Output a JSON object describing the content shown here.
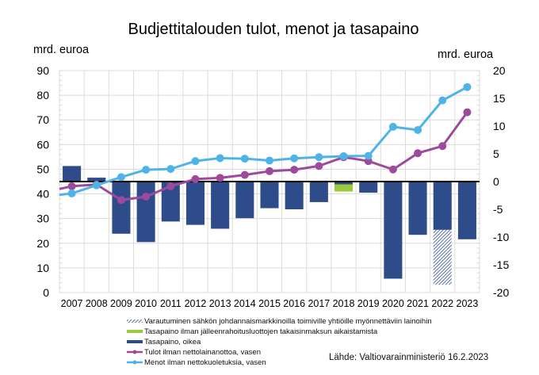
{
  "chart_data": {
    "type": "bar+line",
    "title": "Budjettitalouden tulot, menot ja tasapaino",
    "ylabel_left": "mrd. euroa",
    "ylabel_right": "mrd. euroa",
    "ylim_left": [
      0,
      90
    ],
    "ylim_right": [
      -20,
      20
    ],
    "yticks_left": [
      0,
      10,
      20,
      30,
      40,
      50,
      60,
      70,
      80,
      90
    ],
    "yticks_right": [
      -20,
      -15,
      -10,
      -5,
      0,
      5,
      10,
      15,
      20
    ],
    "grid": true,
    "categories": [
      "2007",
      "2008",
      "2009",
      "2010",
      "2011",
      "2012",
      "2013",
      "2014",
      "2015",
      "2016",
      "2017",
      "2018",
      "2019",
      "2020",
      "2021",
      "2022",
      "2023"
    ],
    "series": [
      {
        "name": "Varautuminen sähkön johdannaismarkkinoilla toimiville yhtiöille myönnettäviin lainoihin",
        "kind": "bar-hatched",
        "axis": "right",
        "color": "#2E4C8A",
        "ranges": [
          null,
          null,
          null,
          null,
          null,
          null,
          null,
          null,
          null,
          null,
          null,
          null,
          null,
          null,
          null,
          [
            -8.7,
            -18.6
          ],
          null
        ]
      },
      {
        "name": "Tasapaino ilman jälleenrahoitusluottojen takaisinmaksun aikaistamista",
        "kind": "bar",
        "axis": "right",
        "color": "#9BCB3C",
        "ranges": [
          null,
          null,
          null,
          null,
          null,
          null,
          null,
          null,
          null,
          null,
          null,
          [
            -0.5,
            -1.8
          ],
          null,
          null,
          null,
          null,
          null
        ]
      },
      {
        "name": "Tasapaino, oikea",
        "kind": "bar",
        "axis": "right",
        "color": "#2E4C8A",
        "values": [
          2.8,
          0.7,
          -9.4,
          -10.9,
          -7.2,
          -7.8,
          -8.5,
          -6.6,
          -4.8,
          -5.0,
          -3.7,
          -0.5,
          -2.0,
          -17.5,
          -9.6,
          -8.7,
          -10.4
        ]
      },
      {
        "name": "Tulot ilman nettolainanottoa, vasen",
        "kind": "line",
        "axis": "left",
        "color": "#9E4A9C",
        "start_value": 42.0,
        "values": [
          43.1,
          43.8,
          37.5,
          38.9,
          43.1,
          46.0,
          46.5,
          47.7,
          49.2,
          49.8,
          51.3,
          54.9,
          53.3,
          49.9,
          56.5,
          59.4,
          73.1
        ]
      },
      {
        "name": "Menot ilman nettokuoletuksia, vasen",
        "kind": "line",
        "axis": "left",
        "color": "#4FB3E8",
        "start_value": 39.6,
        "values": [
          40.2,
          43.5,
          46.8,
          49.8,
          50.1,
          53.3,
          54.5,
          54.3,
          53.5,
          54.4,
          54.9,
          55.3,
          55.4,
          67.2,
          65.9,
          77.9,
          83.3
        ]
      }
    ],
    "legend_order": [
      0,
      1,
      2,
      3,
      4
    ],
    "legend_position": "bottom-left",
    "source": "Lähde: Valtiovarainministeriö 16.2.2023"
  }
}
